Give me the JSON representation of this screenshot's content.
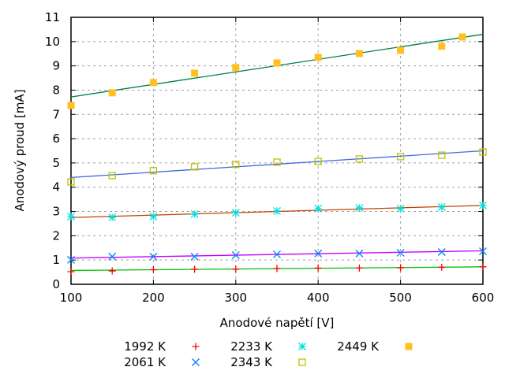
{
  "chart_data": {
    "type": "scatter",
    "xlabel": "Anodové napětí [V]",
    "ylabel": "Anodový proud [mA]",
    "xlim": [
      100,
      600
    ],
    "ylim": [
      0,
      11
    ],
    "xticks": [
      100,
      200,
      300,
      400,
      500,
      600
    ],
    "yticks": [
      0,
      1,
      2,
      3,
      4,
      5,
      6,
      7,
      8,
      9,
      10,
      11
    ],
    "grid": true,
    "legend_position": "bottom",
    "series": [
      {
        "name": "1992 K",
        "marker": "plus",
        "color": "#ff0000",
        "fit_color": "#00c000",
        "x": [
          100,
          150,
          200,
          250,
          300,
          350,
          400,
          450,
          500,
          550,
          600
        ],
        "y": [
          0.52,
          0.55,
          0.6,
          0.62,
          0.62,
          0.65,
          0.67,
          0.67,
          0.68,
          0.7,
          0.72
        ],
        "fit": [
          0.57,
          0.72
        ]
      },
      {
        "name": "2061 K",
        "marker": "cross",
        "color": "#0080ff",
        "fit_color": "#c000ff",
        "x": [
          100,
          150,
          200,
          250,
          300,
          350,
          400,
          450,
          500,
          550,
          600
        ],
        "y": [
          1.01,
          1.14,
          1.14,
          1.14,
          1.2,
          1.23,
          1.27,
          1.27,
          1.3,
          1.33,
          1.36
        ],
        "fit": [
          1.08,
          1.38
        ]
      },
      {
        "name": "2233 K",
        "marker": "star",
        "color": "#00e0e0",
        "fit_color": "#c04000",
        "x": [
          100,
          150,
          200,
          250,
          300,
          350,
          400,
          450,
          500,
          550,
          600
        ],
        "y": [
          2.79,
          2.76,
          2.79,
          2.89,
          2.95,
          3.02,
          3.12,
          3.15,
          3.12,
          3.18,
          3.25
        ],
        "fit": [
          2.75,
          3.25
        ]
      },
      {
        "name": "2343 K",
        "marker": "open-square",
        "color": "#c0c000",
        "fit_color": "#4169e1",
        "x": [
          100,
          150,
          200,
          250,
          300,
          350,
          400,
          450,
          500,
          550,
          600
        ],
        "y": [
          4.22,
          4.48,
          4.68,
          4.84,
          4.94,
          5.03,
          5.06,
          5.16,
          5.26,
          5.32,
          5.45
        ],
        "fit": [
          4.4,
          5.5
        ]
      },
      {
        "name": "2449 K",
        "marker": "filled-square",
        "color": "#ffc020",
        "fit_color": "#008040",
        "x": [
          100,
          150,
          200,
          250,
          300,
          350,
          400,
          450,
          500,
          550,
          575
        ],
        "y": [
          7.37,
          7.89,
          8.31,
          8.7,
          8.93,
          9.12,
          9.35,
          9.51,
          9.64,
          9.81,
          10.19
        ],
        "fit": [
          7.72,
          10.3
        ]
      }
    ]
  }
}
